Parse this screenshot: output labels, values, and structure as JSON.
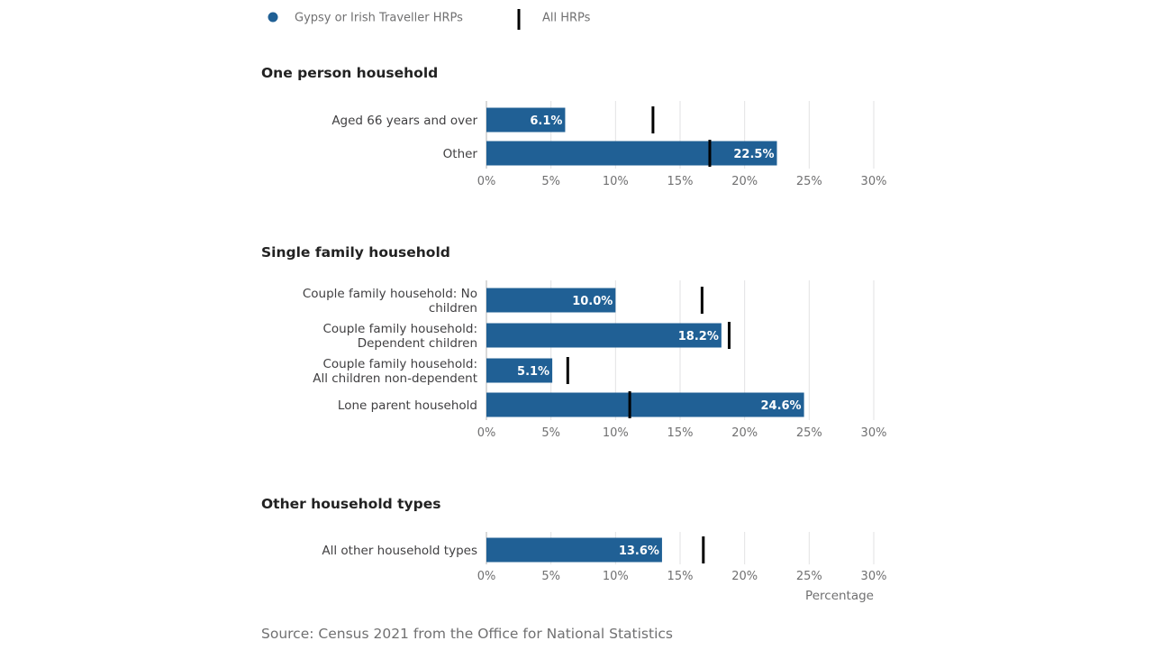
{
  "legend": {
    "series_label": "Gypsy or Irish Traveller HRPs",
    "marker_label": "All HRPs"
  },
  "colors": {
    "bar": "#206095",
    "marker": "#000000",
    "grid": "#e2e2e3"
  },
  "chart_data": [
    {
      "type": "bar",
      "title": "One person household",
      "categories": [
        "Aged 66 years and over",
        "Other"
      ],
      "series": [
        {
          "name": "Gypsy or Irish Traveller HRPs",
          "values": [
            6.1,
            22.5
          ]
        },
        {
          "name": "All HRPs",
          "values": [
            12.9,
            17.3
          ]
        }
      ],
      "value_labels": [
        "6.1%",
        "22.5%"
      ],
      "xlim": [
        0,
        30
      ],
      "xticks": [
        "0%",
        "5%",
        "10%",
        "15%",
        "20%",
        "25%",
        "30%"
      ],
      "xlabel": "",
      "grid": true
    },
    {
      "type": "bar",
      "title": "Single family household",
      "categories": [
        "Couple family household: No children",
        "Couple family household: Dependent children",
        "Couple family household: All children non-dependent",
        "Lone parent household"
      ],
      "series": [
        {
          "name": "Gypsy or Irish Traveller HRPs",
          "values": [
            10.0,
            18.2,
            5.1,
            24.6
          ]
        },
        {
          "name": "All HRPs",
          "values": [
            16.7,
            18.8,
            6.3,
            11.1
          ]
        }
      ],
      "value_labels": [
        "10.0%",
        "18.2%",
        "5.1%",
        "24.6%"
      ],
      "xlim": [
        0,
        30
      ],
      "xticks": [
        "0%",
        "5%",
        "10%",
        "15%",
        "20%",
        "25%",
        "30%"
      ],
      "xlabel": "",
      "grid": true
    },
    {
      "type": "bar",
      "title": "Other household types",
      "categories": [
        "All other household types"
      ],
      "series": [
        {
          "name": "Gypsy or Irish Traveller HRPs",
          "values": [
            13.6
          ]
        },
        {
          "name": "All HRPs",
          "values": [
            16.8
          ]
        }
      ],
      "value_labels": [
        "13.6%"
      ],
      "xlim": [
        0,
        30
      ],
      "xticks": [
        "0%",
        "5%",
        "10%",
        "15%",
        "20%",
        "25%",
        "30%"
      ],
      "xlabel": "Percentage",
      "grid": true
    }
  ],
  "source": "Source: Census 2021 from the Office for National Statistics"
}
